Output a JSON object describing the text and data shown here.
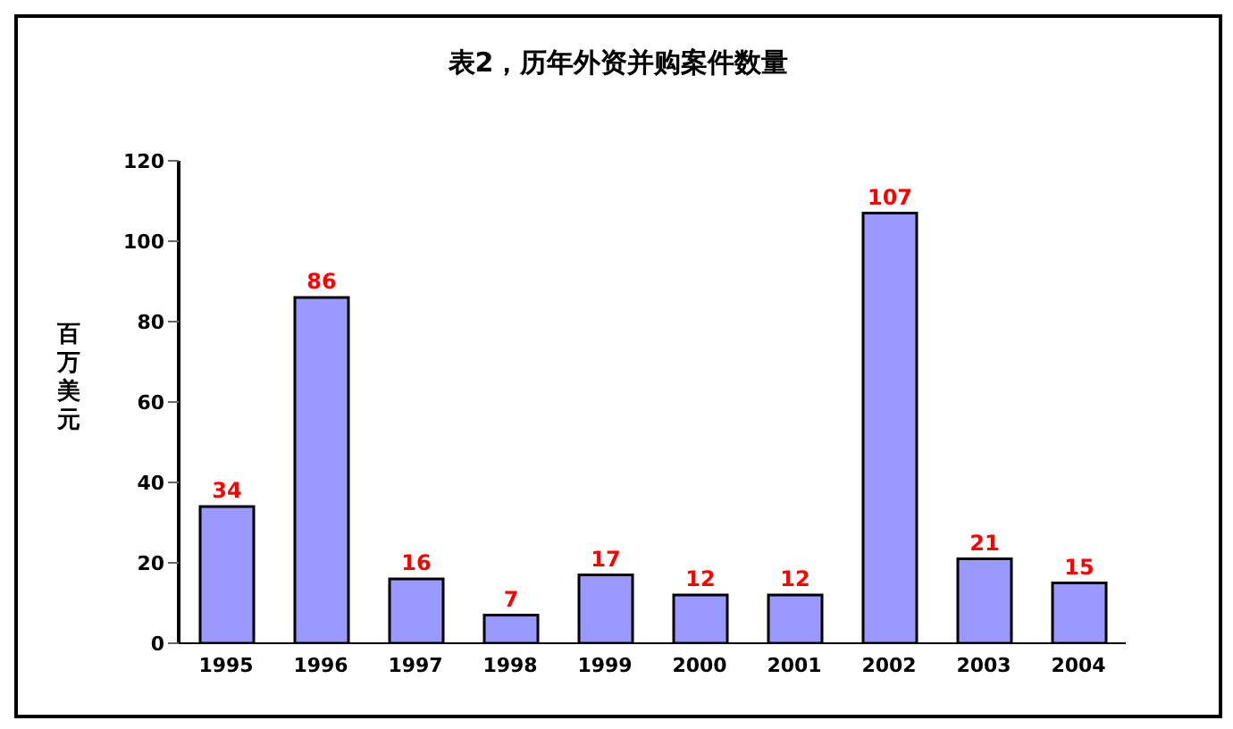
{
  "chart_data": {
    "type": "bar",
    "title": "表2，历年外资并购案件数量",
    "ylabel": "百万美元",
    "categories": [
      "1995",
      "1996",
      "1997",
      "1998",
      "1999",
      "2000",
      "2001",
      "2002",
      "2003",
      "2004"
    ],
    "values": [
      34,
      86,
      16,
      7,
      17,
      12,
      12,
      107,
      21,
      15
    ],
    "color": "#9999ff",
    "ylim": [
      0,
      120
    ],
    "yticks": [
      0,
      20,
      40,
      60,
      80,
      100,
      120
    ],
    "grid": false,
    "data_labels": true,
    "legend": false
  }
}
